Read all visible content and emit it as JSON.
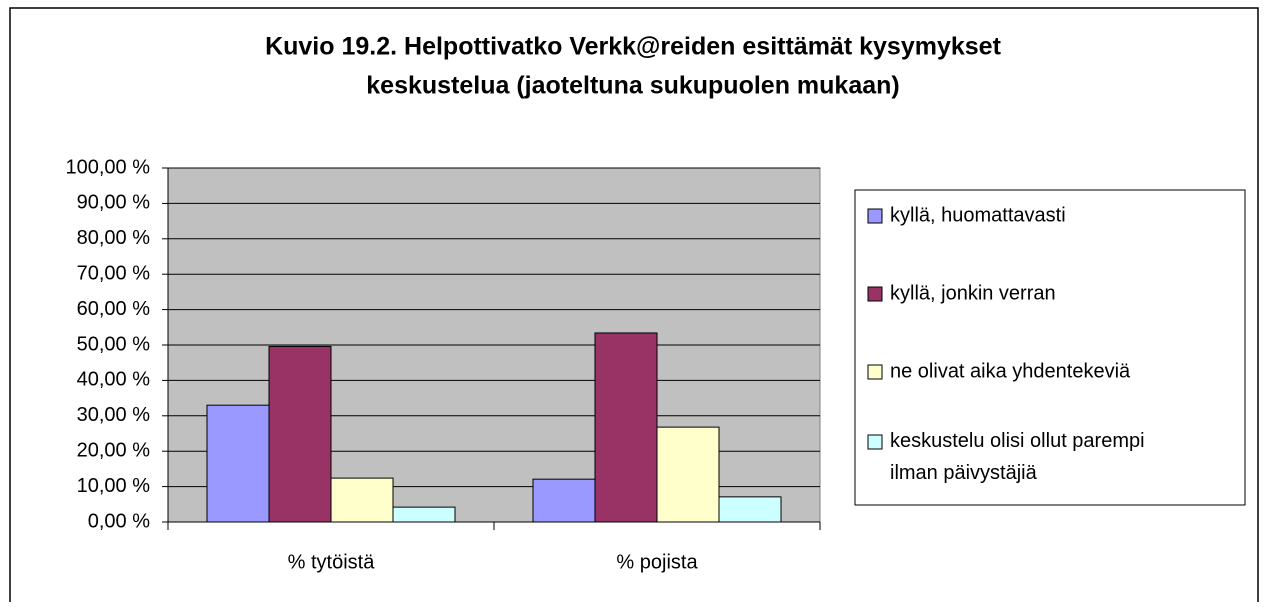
{
  "chart_data": {
    "type": "bar",
    "title": [
      "Kuvio 19.2. Helpottivatko Verkk@reiden esittämät kysymykset",
      "keskustelua (jaoteltuna sukupuolen mukaan)"
    ],
    "categories": [
      "% tytöistä",
      "% pojista"
    ],
    "series": [
      {
        "name": "kyllä, huomattavasti",
        "color": "#9999ff",
        "values": [
          33.0,
          12.1
        ]
      },
      {
        "name": "kyllä, jonkin verran",
        "color": "#993366",
        "values": [
          49.6,
          53.4
        ]
      },
      {
        "name": "ne olivat aika yhdentekeviä",
        "color": "#ffffcc",
        "values": [
          12.4,
          26.8
        ]
      },
      {
        "name": "keskustelu olisi ollut parempi ilman päivystäjiä",
        "color": "#ccffff",
        "values": [
          4.2,
          7.1
        ]
      }
    ],
    "ylim": [
      0,
      100
    ],
    "yticks": [
      {
        "value": 0,
        "label": "0,00 %"
      },
      {
        "value": 10,
        "label": "10,00 %"
      },
      {
        "value": 20,
        "label": "20,00 %"
      },
      {
        "value": 30,
        "label": "30,00 %"
      },
      {
        "value": 40,
        "label": "40,00 %"
      },
      {
        "value": 50,
        "label": "50,00 %"
      },
      {
        "value": 60,
        "label": "60,00 %"
      },
      {
        "value": 70,
        "label": "70,00 %"
      },
      {
        "value": 80,
        "label": "80,00 %"
      },
      {
        "value": 90,
        "label": "90,00 %"
      },
      {
        "value": 100,
        "label": "100,00 %"
      }
    ],
    "grid": true,
    "plot_background": "#c0c0c0",
    "legend": "right"
  }
}
